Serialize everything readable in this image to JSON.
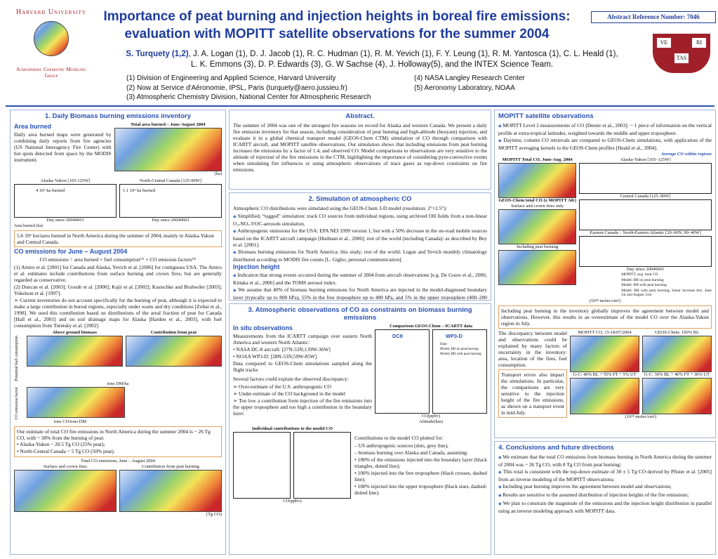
{
  "header": {
    "title_line1": "Importance of peat burning and injection heights in boreal fire emissions:",
    "title_line2": "evaluation with MOPITT satellite observations for the summer 2004",
    "lead_author": "S. Turquety (1,2)",
    "authors_line1": ", J. A. Logan (1), D. J. Jacob (1), R. C. Hudman (1), R. M. Yevich (1), F. Y. Leung (1), R. M. Yantosca (1), C. L. Heald (1),",
    "authors_line2": "L. K. Emmons (3), D. P. Edwards (3), G. W Sachse (4), J. Holloway(5), and the INTEX Science Team.",
    "abstract_ref": "Abstract Reference Number:  7046",
    "logo_top": "Harvard University",
    "logo_bottom": "Atmospheric Chemistry Modeling Group",
    "shield": [
      "VE",
      "RI",
      "TAS"
    ],
    "affiliations_left": [
      "(1) Division of Engineering and Applied Science, Harvard University",
      "(2) Now at Service d'Aéronomie, IPSL, Paris (turquety@aero.jussieu.fr)",
      "(3) Atmospheric Chemistry Division, National Center for Atmospheric Research"
    ],
    "affiliations_right": [
      "(4) NASA Langley Research Center",
      "(5) Aeronomy Laboratory, NOAA"
    ]
  },
  "section1": {
    "title": "1. Daily Biomass burning emissions inventory",
    "subtitle": "Area burned",
    "text": "Daily area burned maps were generated by combining daily reports from fire agencies (US National Interagency Fire Center) with hot spots detected from space by the MODIS instrument.",
    "fig_title": "Total area burned – June-August 2004",
    "fig_unit": "(ha)",
    "plot_titles": [
      "Alaska-Yukon [165-125W]",
      "North-Central Canada [125-90W]"
    ],
    "plot_notes": [
      "4 10⁶ ha burned",
      "1.1 10⁶ ha burned"
    ],
    "plot_xlabel": "Day since 20040601",
    "plot_ylabel": "Area burned (ha)",
    "note": "5.6 10⁶ hectares burned in North America during the summer of 2004, mainly in Alaska-Yukon and Central Canada.",
    "co_subtitle": "CO emissions for June – August 2004",
    "formula": "CO emissions = area burned × fuel consumption⁽¹⁾ × CO emission factors⁽²⁾",
    "refs": [
      "(1) Amiro et al. [2001] for Canada and Alaska, Yevich et al. [2006] for contiguous USA. The Amiro et al. estimates include contributions from surface burning and crown fires, but are generally regarded as conservative.",
      "(2) Duncan et al. [2003]; Goode et al. [2000]; Kajii et al. [2002]; Kasischke and Bruhwiler [2003]; Yokelson et al. [1997].",
      "➢ Current inventories do not account specifically for the burning of peat, although it is expected to make a large contribution in boreal regions, especially under warm and dry conditions [Zoltai et al., 1998]. We used this contribution based on distributions of the areal fraction of peat for Canada [Hall et al., 2001] and on soil drainage maps for Alaska [Harden et al., 2003], with fuel consumption from Turetsky et al. [2002]."
    ],
    "map_titles": [
      "Above ground biomass",
      "Contribution from peat"
    ],
    "map_rows": [
      "Potential fuel consumption",
      "CO emission factor"
    ],
    "map_units": [
      "tons DM/ha",
      "tons CO/tons DM"
    ],
    "estimate": "Our estimate of total CO fire emissions in North America during the summer 2004 is ~ 26 Tg CO, with ~ 30% from the burning of peat:",
    "estimate_items": [
      "• Alaska-Yukon ~ 20.5 Tg CO (25% peat);",
      "• North-Central Canada ~ 5 Tg CO (50% peat)."
    ],
    "total_title": "Total CO emissions, June – August 2004",
    "total_maps": [
      "Surface and crown fires",
      "Contribution from peat burning"
    ],
    "total_unit": "(Tg CO)"
  },
  "abstract": {
    "title": "Abstract.",
    "text": "The summer of 2004 was one of the strongest fire seasons on record for Alaska and western Canada. We present a daily fire emission inventory for that season, including consideration of peat burning and high-altitude (buoyant) injection, and evaluate it in a global chemical transport model (GEOS-Chem CTM) simulation of CO through comparison with ICARTT aircraft, and MOPITT satellite observations. Our simulation shows that including emissions from peat burning increases the emissions by a factor of 1.4, and observed CO. Model comparisons to observations are very sensitive to the altitude of injection of the fire emissions in the CTM, highlighting the importance of considering pyro-convective events when simulating fire influences or using atmospheric observations of trace gases as top-down constraints on fire emissions."
  },
  "section2": {
    "title": "2. Simulation of atmospheric CO",
    "intro": "Atmospheric CO distributions were simulated using the GEOS-Chem 3-D model (resolution: 2°×2.5°):",
    "items": [
      "Simplified, “tagged” simulation: track CO sources from individual regions, using archived OH fields from a non-linear O₃-NOₓ-VOC-aerosols simulation.",
      "Anthropogenic emissions for the USA: EPA NEI 1999 version 1, but with a 50% decrease in the on-road mobile sources based on the ICARTT aircraft campaign [Hudman et al., 2006]; rest of the world (including Canada): as described by Bey et al. [2001].",
      "Biomass burning emissions for North America: this study; rest of the world: Logan and Yevich monthly climatology distributed according to MODIS fire counts [L. Giglio, personal communication]."
    ],
    "subtitle": "Injection height",
    "inj_items": [
      "Indication that strong events occurred during the summer of 2004 from aircraft observations [e.g. De Gouw et al., 2006; Kittaka et al., 2006] and the TOMS aerosol index.",
      "We assume that 40% of biomass burning emissions for North America are injected in the model-diagnosed boundary layer (typically up to 800 hPa), 55% in the free troposphere up to 400 hPa, and 5% in the upper troposphere (400–200 hPa)."
    ]
  },
  "section3": {
    "title": "3. Atmospheric observations of CO as constraints on biomass burning emissions",
    "subtitle": "In situ observations",
    "items": [
      "Measurements from the ICARTT campaign over eastern North America and western North Atlantic:",
      "• NASA DC-8 aircraft: [27N-53N;139W-36W]",
      "• NOAA WP3-D: [28N-53N;59W-85W]",
      "Data compared to GEOS-Chem simulations sampled along the flight tracks"
    ],
    "disc_intro": "Several factors could explain the observed discrepancy:",
    "disc_items": [
      "➢ Over-estimate of the U.S. anthropogenic CO",
      "➢ Under-estimate of the CO background in the model",
      "➢ Too low a contribution from injection of the fire emissions into the upper troposphere and too high a contribution in the boundary layer."
    ],
    "fig_title": "Comparison GEOS-Chem – ICARTT data",
    "panels": [
      "DC8",
      "WP3-D"
    ],
    "legend": [
      "Data",
      "Model, BB no peat burning",
      "Model, BB with peat burning"
    ],
    "ylabel": "Altitude(km)",
    "xlabel": "CO(ppbv)",
    "fig2_title": "Individual contributions to the model CO",
    "contrib_intro": "Contributions to the model CO plotted for:",
    "contrib_items": [
      "– US anthropogenic sources (dots, grey line),",
      "– biomass burning over Alaska and Canada, assuming:",
      "• 100% of the emissions injected into the boundary layer (black triangles, dotted line);",
      "• 100% injected into the free troposphere (black crosses, dashed line);",
      "• 100% injected into the upper troposphere (black stars, dashed-dotted line)."
    ]
  },
  "mopitt": {
    "title": "MOPITT satellite observations",
    "items": [
      "MOPITT Level 2 measurements of CO [Deeter et al., 2003]: ~ 1 piece of information on the vertical profile at extra-tropical latitudes, weighted towards the middle and upper troposphere.",
      "Daytime, column CO retrievals are compared to GEOS-Chem simulations, with application of the MOPITT averaging kernels to the GEOS-Chem profiles [Heald et al., 2004]."
    ],
    "avg_label": "Average CO within regions",
    "map_titles": [
      "MOPITT Total CO, June-Aug. 2004",
      "GEOS-Chem total CO (x MOPITT AK)",
      "Surface and crown fires only",
      "Including peat burning"
    ],
    "region_titles": [
      "Alaska-Yukon [165–125W]",
      "Central Canada [125–90W]",
      "Eastern Canada – North-Eastern Atlantic [20–60N, 90–40W]"
    ],
    "legend": [
      "MOPITT, avg. total CO",
      "Model: BB no peat burning",
      "Model: BB with peat burning",
      "Model: BB with peat burning, linear increase btw. June 1st and August 31st"
    ],
    "xlabel": "Day since 20040601",
    "unit": "(10¹⁸ molec/cm²)",
    "result": "Including peat burning in the inventory globally improves the agreement between model and observations. However, this results in an overestimate of the model CO over the Alaska-Yukon region in July.",
    "discrepancy": "The discrepancy between model and observations could be explained by many factors of uncertainty in the inventory: area, location of the fires, fuel consumption.",
    "transport": "Transport errors also impact the simulations. In particular, the comparisons are very sensitive to the injection height of the fire emissions, as shown on a transport event in mid-July.",
    "case_titles": [
      "MOPITT CO, 15-18/07/2004",
      "GEOS-Chem: 100% BL",
      "G-C: 40% BL + 55% FT + 5% UT",
      "G-C: 30% BL + 40% FT + 30% UT"
    ]
  },
  "section4": {
    "title": "4. Conclusions and future directions",
    "items": [
      "We estimate that the total CO emissions from biomass burning in North America during the summer of 2004 was ~ 26 Tg CO, with 8 Tg CO from peat burning;",
      "This total is consistent with the top-down estimate of 30 ± 5 Tg CO derived by Pfister et al. [2005] from an inverse modeling of the MOPITT observations;",
      "Including peat burning improves the agreement between model and observations;",
      "Results are sensitive to the assumed distribution of injection heights of the fire emissions;",
      "We plan to constrain the magnitude of the emissions and the injection height distribution in parallel using an inverse modeling approach with MOPITT data."
    ]
  }
}
